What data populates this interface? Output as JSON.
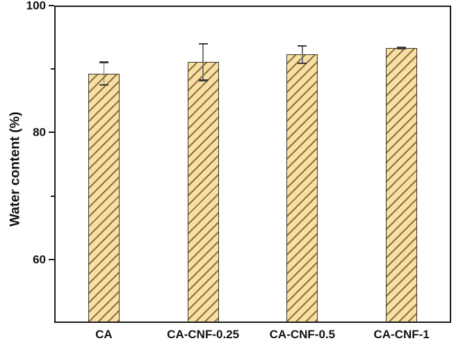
{
  "figure": {
    "background": "#ffffff"
  },
  "chart_data": {
    "type": "bar",
    "title": "",
    "xlabel": "",
    "ylabel": "Water content (%)",
    "categories": [
      "CA",
      "CA-CNF-0.25",
      "CA-CNF-0.5",
      "CA-CNF-1"
    ],
    "values": [
      89.3,
      91.1,
      92.3,
      93.3
    ],
    "errors": [
      1.9,
      3.0,
      1.5,
      0.2
    ],
    "ylim": [
      50,
      100
    ],
    "yticks_major": [
      100,
      80,
      60
    ],
    "ytick_labels": [
      "100",
      "80",
      "60"
    ],
    "yticks_minor": [
      90,
      70
    ],
    "grid": false,
    "legend": null,
    "bar_hatch": "forward-diagonal",
    "style": {
      "bar_fill": "#f8dfa3",
      "hatch_color": "#8c7340",
      "bar_edge": "#3d3322",
      "error_line": "#757575",
      "error_cap": "#3a3a3a",
      "axis_color": "#1c1c1c",
      "text_color": "#111111",
      "background": "#ffffff"
    }
  }
}
